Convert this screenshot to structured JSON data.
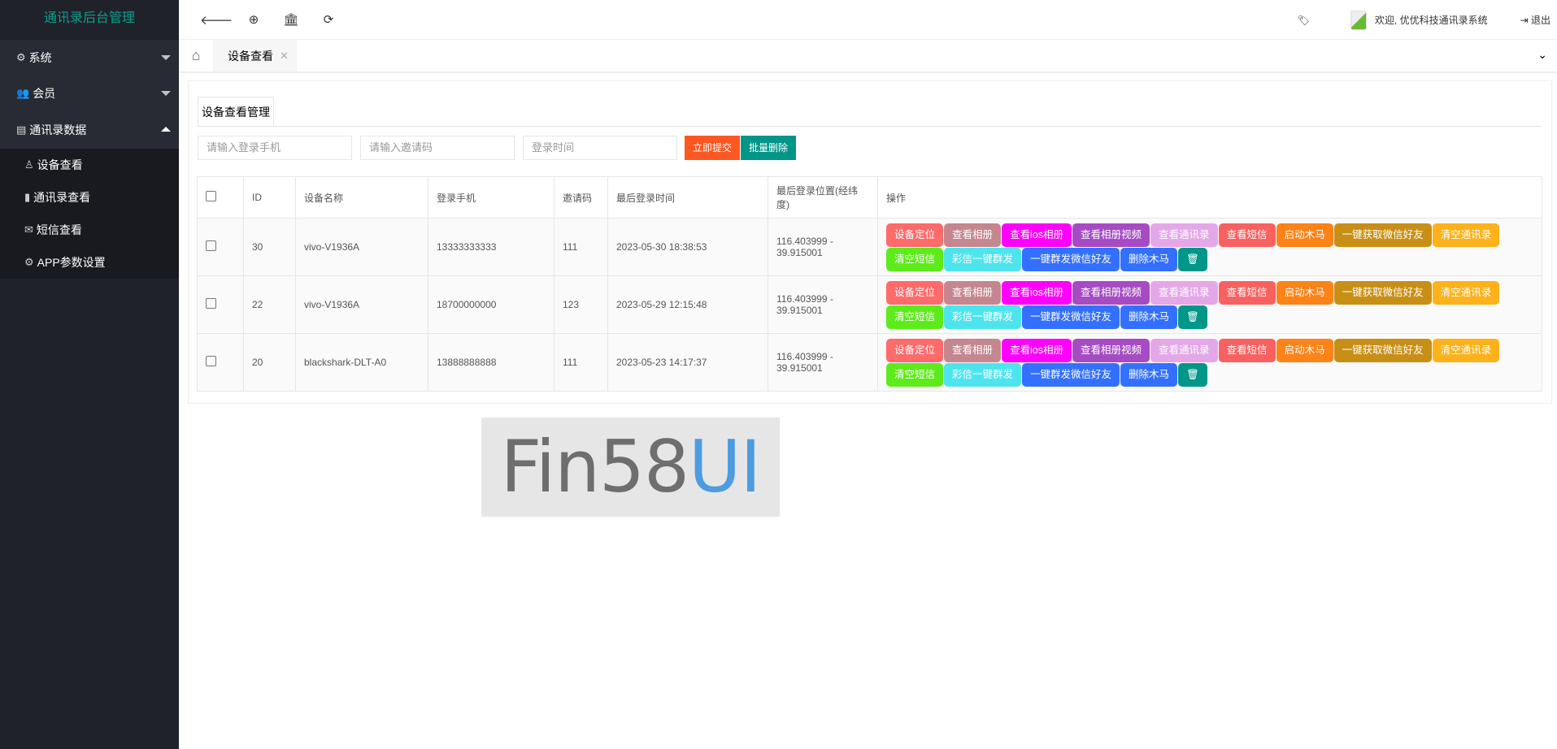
{
  "sidebar": {
    "logo": "通讯录后台管理",
    "menus": [
      {
        "label": "系统",
        "icon": "gear-icon"
      },
      {
        "label": "会员",
        "icon": "users-icon"
      },
      {
        "label": "通讯录数据",
        "icon": "id-card-icon"
      }
    ],
    "items": [
      {
        "label": "设备查看",
        "icon": "user-icon"
      },
      {
        "label": "通讯录查看",
        "icon": "book-icon"
      },
      {
        "label": "短信查看",
        "icon": "envelope-icon"
      },
      {
        "label": "APP参数设置",
        "icon": "gear-icon"
      }
    ]
  },
  "topbar": {
    "welcome": "欢迎, 优优科技通讯录系统",
    "logout": "退出"
  },
  "tabs": {
    "active": "设备查看"
  },
  "panel": {
    "title": "设备查看管理",
    "phone_placeholder": "请输入登录手机",
    "code_placeholder": "请输入邀请码",
    "time_placeholder": "登录时间",
    "submit": "立即提交",
    "batch_delete": "批量删除"
  },
  "table": {
    "headers": [
      "ID",
      "设备名称",
      "登录手机",
      "邀请码",
      "最后登录时间",
      "最后登录位置(经纬度)",
      "操作"
    ],
    "rows": [
      {
        "id": "30",
        "name": "vivo-V1936A",
        "phone": "13333333333",
        "code": "111",
        "time": "2023-05-30 18:38:53",
        "loc": "116.403999 - 39.915001"
      },
      {
        "id": "22",
        "name": "vivo-V1936A",
        "phone": "18700000000",
        "code": "123",
        "time": "2023-05-29 12:15:48",
        "loc": "116.403999 - 39.915001"
      },
      {
        "id": "20",
        "name": "blackshark-DLT-A0",
        "phone": "13888888888",
        "code": "111",
        "time": "2023-05-23 14:17:37",
        "loc": "116.403999 - 39.915001"
      }
    ],
    "actions": [
      {
        "label": "设备定位",
        "color": "#ff6a6a"
      },
      {
        "label": "查看相册",
        "color": "#c4878f"
      },
      {
        "label": "查看ios相册",
        "color": "#ff00ff"
      },
      {
        "label": "查看相册视频",
        "color": "#a64bc4"
      },
      {
        "label": "查看通讯录",
        "color": "#e4a8e8"
      },
      {
        "label": "查看短信",
        "color": "#f96060"
      },
      {
        "label": "启动木马",
        "color": "#fb8318"
      },
      {
        "label": "一键获取微信好友",
        "color": "#c88f17"
      },
      {
        "label": "清空通讯录",
        "color": "#fdb21b"
      },
      {
        "label": "清空短信",
        "color": "#5deb1b"
      },
      {
        "label": "彩信一键群发",
        "color": "#4ee4ee"
      },
      {
        "label": "一键群发微信好友",
        "color": "#3370ff"
      },
      {
        "label": "删除木马",
        "color": "#3370ff"
      },
      {
        "label": "",
        "icon": "trash-icon",
        "color": "#009688"
      }
    ]
  },
  "logo_image": {
    "text1": "Fin58",
    "text2": "UI"
  }
}
